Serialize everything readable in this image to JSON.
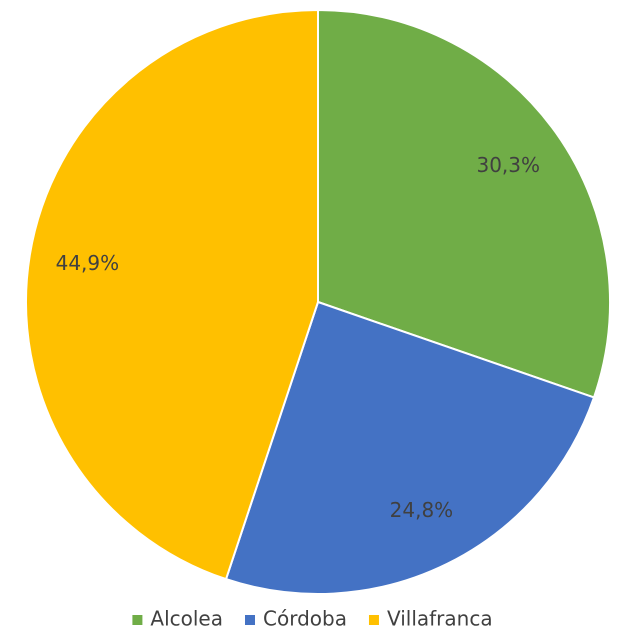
{
  "chart_data": {
    "type": "pie",
    "categories": [
      "Alcolea",
      "Córdoba",
      "Villafranca"
    ],
    "values": [
      30.3,
      24.8,
      44.9
    ],
    "value_labels": [
      "30,3%",
      "24,8%",
      "44,9%"
    ],
    "colors": [
      "#70ad47",
      "#4472c4",
      "#ffc000"
    ],
    "legend": "bottom"
  }
}
